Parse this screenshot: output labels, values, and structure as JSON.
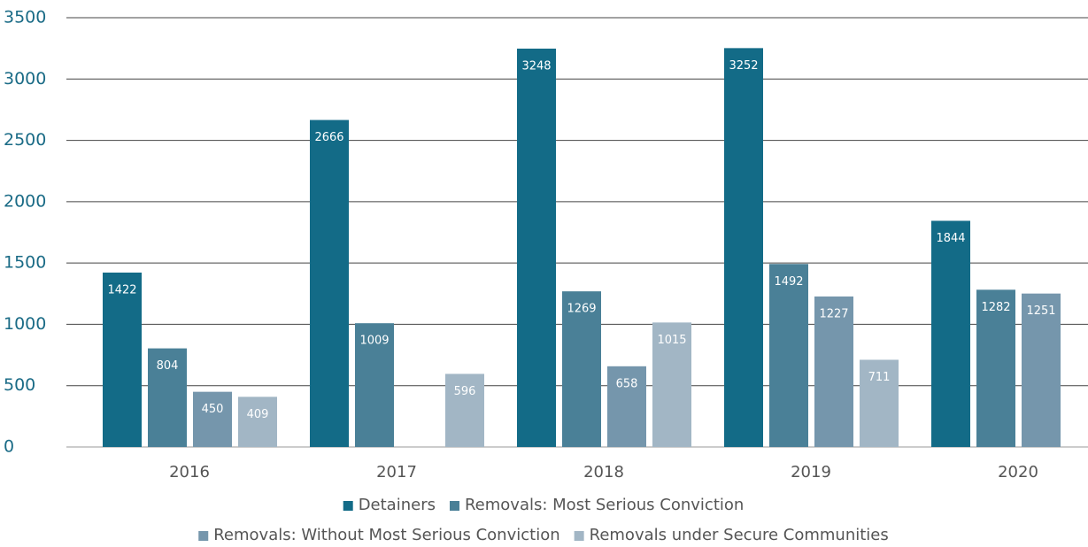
{
  "chart_data": {
    "type": "bar",
    "categories": [
      "2016",
      "2017",
      "2018",
      "2019",
      "2020"
    ],
    "series": [
      {
        "name": "Detainers",
        "color": "#136b87",
        "values": [
          1422,
          2666,
          3248,
          3252,
          1844
        ]
      },
      {
        "name": "Removals: Most Serious Conviction",
        "color": "#4a8097",
        "values": [
          804,
          1009,
          1269,
          1492,
          1282
        ]
      },
      {
        "name": "Removals: Without Most Serious Conviction",
        "color": "#7596ac",
        "values": [
          450,
          null,
          658,
          1227,
          1251
        ]
      },
      {
        "name": "Removals under Secure Communities",
        "color": "#a2b6c5",
        "values": [
          409,
          596,
          1015,
          711,
          null
        ]
      }
    ],
    "ylim": [
      0,
      3500
    ],
    "yticks": [
      0,
      500,
      1000,
      1500,
      2000,
      2500,
      3000,
      3500
    ],
    "grid": true,
    "legend": "bottom"
  }
}
